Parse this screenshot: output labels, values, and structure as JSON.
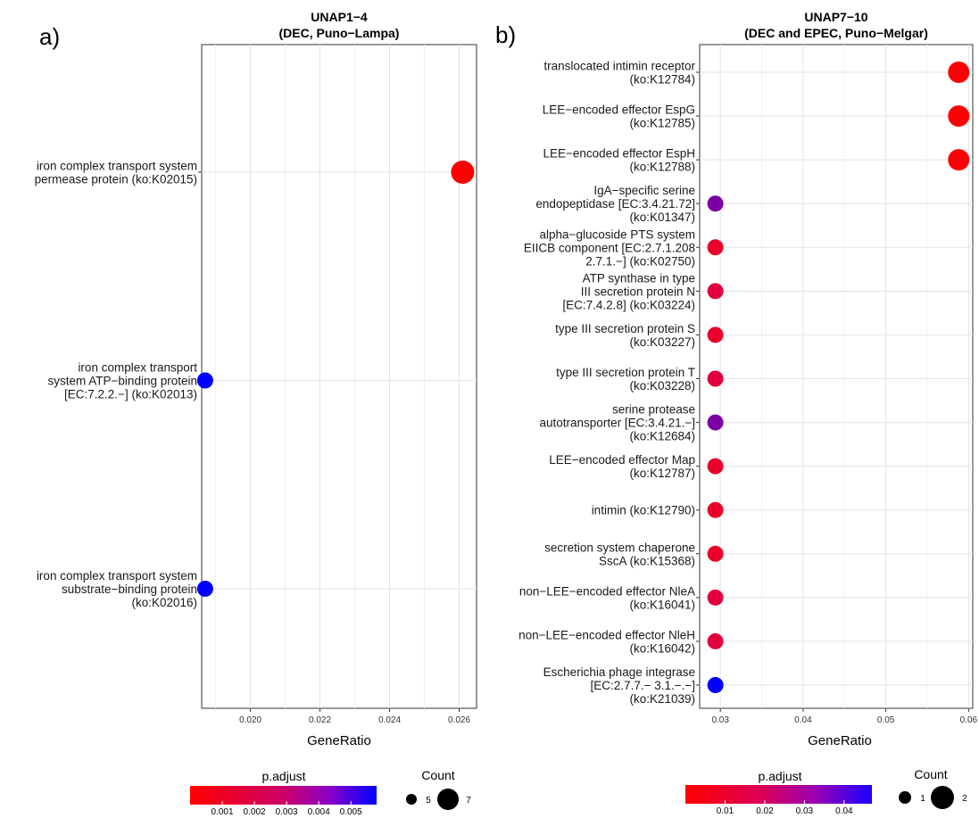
{
  "panels": [
    {
      "letter": "a)",
      "title_line1": "UNAP1−4",
      "title_line2": "(DEC, Puno−Lampa)",
      "xlabel": "GeneRatio",
      "legend": {
        "color_title": "p.adjust",
        "color_ticks": [
          "0.001",
          "0.002",
          "0.003",
          "0.004",
          "0.005"
        ],
        "size_title": "Count",
        "size_ticks": [
          "5",
          "7"
        ]
      }
    },
    {
      "letter": "b)",
      "title_line1": "UNAP7−10",
      "title_line2": "(DEC and EPEC, Puno−Melgar)",
      "xlabel": "GeneRatio",
      "legend": {
        "color_title": "p.adjust",
        "color_ticks": [
          "0.01",
          "0.02",
          "0.03",
          "0.04"
        ],
        "size_title": "Count",
        "size_ticks": [
          "1",
          "2"
        ]
      }
    }
  ],
  "chart_data": [
    {
      "type": "scatter",
      "title": "UNAP1−4 (DEC, Puno−Lampa)",
      "xlabel": "GeneRatio",
      "ylabel": "",
      "xlim": [
        0.0186,
        0.0265
      ],
      "x_ticks": [
        "0.020",
        "0.022",
        "0.024",
        "0.026"
      ],
      "x_tick_values": [
        0.02,
        0.022,
        0.024,
        0.026
      ],
      "color_scale": {
        "name": "p.adjust",
        "low_color": "#ff0000",
        "high_color": "#0000ff",
        "range": [
          0.0005,
          0.0058
        ]
      },
      "size_scale": {
        "name": "Count",
        "values": [
          5,
          7
        ]
      },
      "categories": [
        [
          "iron complex transport system",
          "permease protein (ko:K02015)"
        ],
        [
          "iron complex transport",
          "system ATP−binding protein",
          "[EC:7.2.2.−] (ko:K02013)"
        ],
        [
          "iron complex transport system",
          "substrate−binding protein",
          "(ko:K02016)"
        ]
      ],
      "points": [
        {
          "x": 0.0261,
          "p_adjust": 0.0005,
          "count": 7
        },
        {
          "x": 0.0187,
          "p_adjust": 0.0058,
          "count": 5
        },
        {
          "x": 0.0187,
          "p_adjust": 0.0058,
          "count": 5
        }
      ]
    },
    {
      "type": "scatter",
      "title": "UNAP7−10 (DEC and EPEC, Puno−Melgar)",
      "xlabel": "GeneRatio",
      "ylabel": "",
      "xlim": [
        0.0275,
        0.0605
      ],
      "x_ticks": [
        "0.03",
        "0.04",
        "0.05",
        "0.06"
      ],
      "x_tick_values": [
        0.03,
        0.04,
        0.05,
        0.06
      ],
      "color_scale": {
        "name": "p.adjust",
        "low_color": "#ff0000",
        "high_color": "#0000ff",
        "range": [
          0.0,
          0.047
        ]
      },
      "size_scale": {
        "name": "Count",
        "values": [
          1,
          2
        ]
      },
      "categories": [
        [
          "translocated intimin receptor",
          "(ko:K12784)"
        ],
        [
          "LEE−encoded effector EspG",
          "(ko:K12785)"
        ],
        [
          "LEE−encoded effector EspH",
          "(ko:K12788)"
        ],
        [
          "IgA−specific serine",
          "endopeptidase [EC:3.4.21.72]",
          "(ko:K01347)"
        ],
        [
          "alpha−glucoside PTS system",
          "EIICB component [EC:2.7.1.208",
          "2.7.1.−] (ko:K02750)"
        ],
        [
          "ATP synthase in type",
          "III secretion protein N",
          "[EC:7.4.2.8] (ko:K03224)"
        ],
        [
          "type III secretion protein S",
          "(ko:K03227)"
        ],
        [
          "type III secretion protein T",
          "(ko:K03228)"
        ],
        [
          "serine protease",
          "autotransporter [EC:3.4.21.−]",
          "(ko:K12684)"
        ],
        [
          "LEE−encoded effector Map",
          "(ko:K12787)"
        ],
        [
          "intimin (ko:K12790)"
        ],
        [
          "secretion system chaperone",
          "SscA (ko:K15368)"
        ],
        [
          "non−LEE−encoded effector NleA",
          "(ko:K16041)"
        ],
        [
          "non−LEE−encoded effector NleH",
          "(ko:K16042)"
        ],
        [
          "Escherichia phage integrase",
          "[EC:2.7.7.− 3.1.−.−]",
          "(ko:K21039)"
        ]
      ],
      "points": [
        {
          "x": 0.0588,
          "p_adjust": 0.001,
          "count": 2
        },
        {
          "x": 0.0588,
          "p_adjust": 0.001,
          "count": 2
        },
        {
          "x": 0.0588,
          "p_adjust": 0.001,
          "count": 2
        },
        {
          "x": 0.0294,
          "p_adjust": 0.033,
          "count": 1
        },
        {
          "x": 0.0294,
          "p_adjust": 0.01,
          "count": 1
        },
        {
          "x": 0.0294,
          "p_adjust": 0.014,
          "count": 1
        },
        {
          "x": 0.0294,
          "p_adjust": 0.01,
          "count": 1
        },
        {
          "x": 0.0294,
          "p_adjust": 0.014,
          "count": 1
        },
        {
          "x": 0.0294,
          "p_adjust": 0.033,
          "count": 1
        },
        {
          "x": 0.0294,
          "p_adjust": 0.01,
          "count": 1
        },
        {
          "x": 0.0294,
          "p_adjust": 0.01,
          "count": 1
        },
        {
          "x": 0.0294,
          "p_adjust": 0.01,
          "count": 1
        },
        {
          "x": 0.0294,
          "p_adjust": 0.014,
          "count": 1
        },
        {
          "x": 0.0294,
          "p_adjust": 0.014,
          "count": 1
        },
        {
          "x": 0.0294,
          "p_adjust": 0.047,
          "count": 1
        }
      ]
    }
  ]
}
